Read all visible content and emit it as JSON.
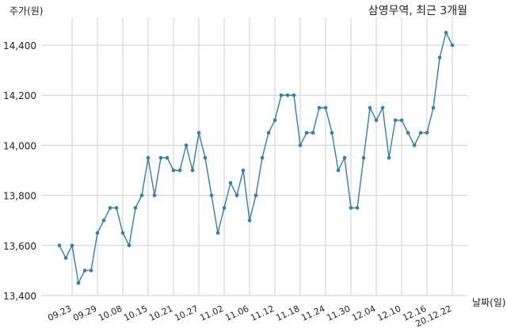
{
  "chart_data": {
    "type": "line",
    "title": "삼영무역, 최근 3개월",
    "ylabel": "주가(원)",
    "xlabel": "날짜(일)",
    "ylim": [
      13400,
      14500
    ],
    "yticks": [
      13400,
      13600,
      13800,
      14000,
      14200,
      14400
    ],
    "ytick_labels": [
      "13,400",
      "13,600",
      "13,800",
      "14,000",
      "14,200",
      "14,400"
    ],
    "xticks": [
      {
        "index": 2,
        "label": "09.23"
      },
      {
        "index": 6,
        "label": "09.29"
      },
      {
        "index": 10,
        "label": "10.08"
      },
      {
        "index": 14,
        "label": "10.15"
      },
      {
        "index": 18,
        "label": "10.21"
      },
      {
        "index": 22,
        "label": "10.27"
      },
      {
        "index": 26,
        "label": "11.02"
      },
      {
        "index": 30,
        "label": "11.06"
      },
      {
        "index": 34,
        "label": "11.12"
      },
      {
        "index": 38,
        "label": "11.18"
      },
      {
        "index": 42,
        "label": "11.24"
      },
      {
        "index": 46,
        "label": "11.30"
      },
      {
        "index": 50,
        "label": "12.04"
      },
      {
        "index": 54,
        "label": "12.10"
      },
      {
        "index": 58,
        "label": "12.16"
      },
      {
        "index": 62,
        "label": "20.12.22"
      }
    ],
    "grid": true,
    "series": [
      {
        "color": "#2e7fb5",
        "values": [
          13600,
          13550,
          13600,
          13450,
          13500,
          13500,
          13650,
          13700,
          13750,
          13750,
          13650,
          13600,
          13750,
          13800,
          13950,
          13800,
          13950,
          13950,
          13900,
          13900,
          14000,
          13900,
          14050,
          13950,
          13800,
          13650,
          13750,
          13850,
          13800,
          13900,
          13700,
          13800,
          13950,
          14050,
          14100,
          14200,
          14200,
          14200,
          14000,
          14050,
          14050,
          14150,
          14150,
          14050,
          13900,
          13950,
          13750,
          13750,
          13950,
          14150,
          14100,
          14150,
          13950,
          14100,
          14100,
          14050,
          14000,
          14050,
          14050,
          14150,
          14350,
          14450,
          14400
        ]
      }
    ]
  }
}
